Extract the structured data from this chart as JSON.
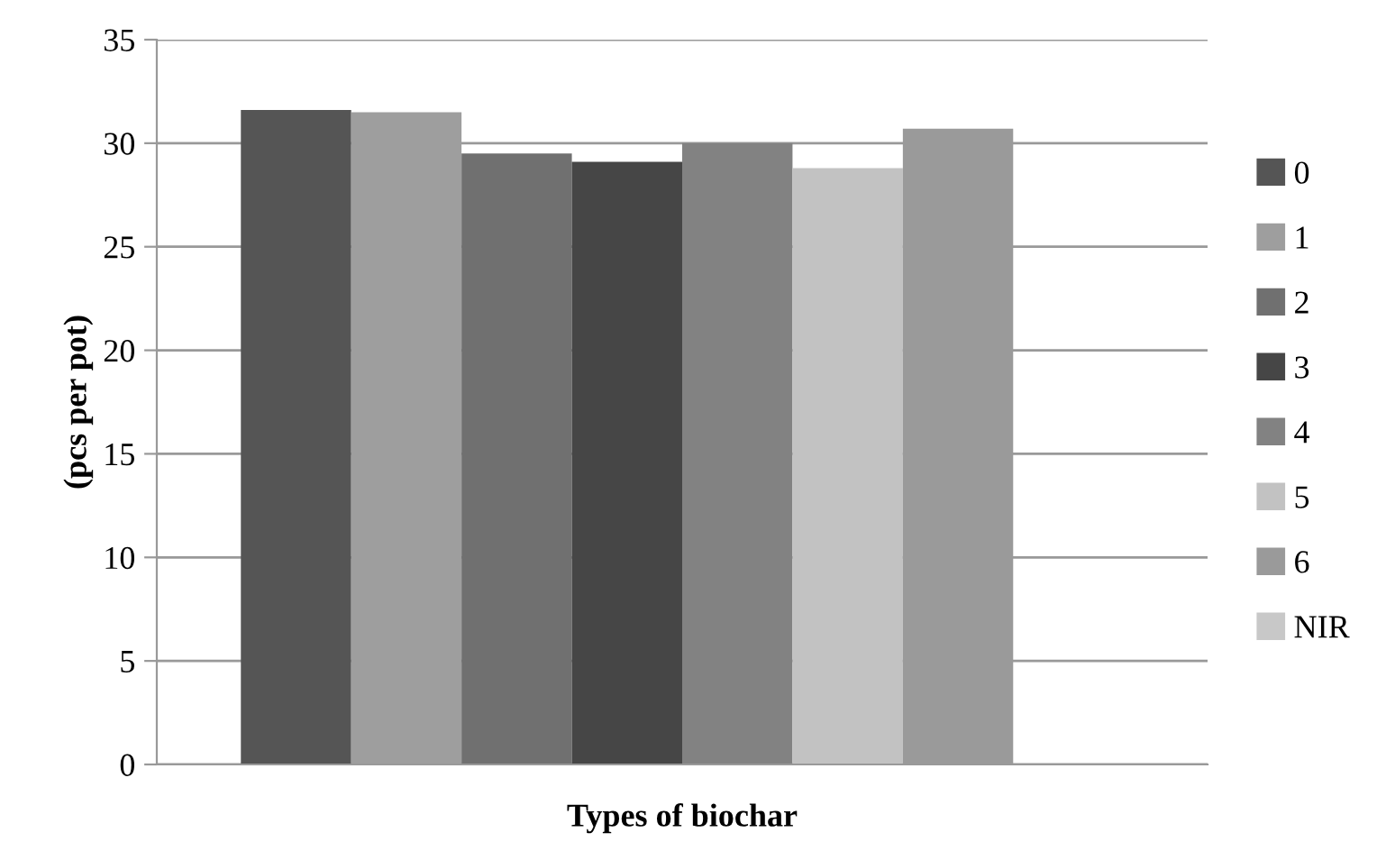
{
  "chart_data": {
    "type": "bar",
    "xlabel": "Types of biochar",
    "ylabel": "(pcs per pot)",
    "categories": [
      null
    ],
    "series": [
      {
        "name": "0",
        "color": "#555555",
        "values": [
          31.6
        ]
      },
      {
        "name": "1",
        "color": "#9e9e9e",
        "values": [
          31.5
        ]
      },
      {
        "name": "2",
        "color": "#707070",
        "values": [
          29.5
        ]
      },
      {
        "name": "3",
        "color": "#464646",
        "values": [
          29.1
        ]
      },
      {
        "name": "4",
        "color": "#828282",
        "values": [
          30.0
        ]
      },
      {
        "name": "5",
        "color": "#c2c2c2",
        "values": [
          28.8
        ]
      },
      {
        "name": "6",
        "color": "#9a9a9a",
        "values": [
          30.7
        ]
      },
      {
        "name": "NIR",
        "color": "#c8c8c8",
        "values": [
          null
        ]
      }
    ],
    "ylim": [
      0,
      35
    ],
    "yticks": [
      0,
      5,
      10,
      15,
      20,
      25,
      30,
      35
    ],
    "grid": "y",
    "legend": "right"
  }
}
